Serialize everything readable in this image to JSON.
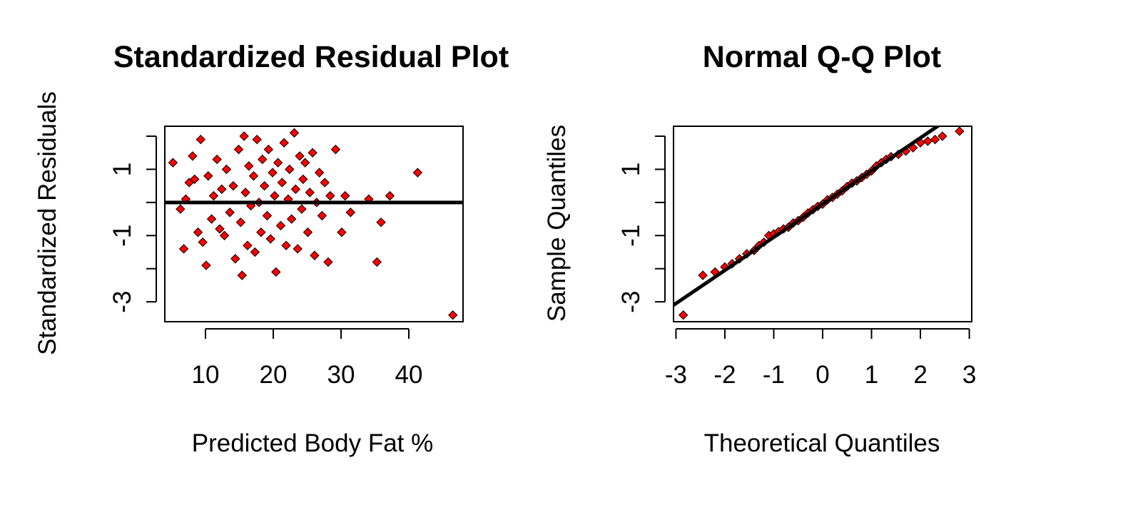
{
  "chart_data": [
    {
      "type": "scatter",
      "title": "Standardized Residual Plot",
      "xlabel": "Predicted Body Fat %",
      "ylabel": "Standardized Residuals",
      "xlim": [
        4,
        48
      ],
      "ylim": [
        -3.6,
        2.3
      ],
      "xticks": [
        "10",
        "20",
        "30",
        "40"
      ],
      "yticks": [
        "-3",
        "-1",
        "1"
      ],
      "reference_line": {
        "type": "horizontal",
        "y": 0
      },
      "marker": {
        "shape": "diamond",
        "fill": "#ff0000",
        "stroke": "#000000"
      },
      "grid": false,
      "points": [
        [
          5.2,
          1.2
        ],
        [
          6.3,
          -0.2
        ],
        [
          6.8,
          -1.4
        ],
        [
          7.1,
          0.1
        ],
        [
          7.6,
          0.6
        ],
        [
          8.1,
          1.4
        ],
        [
          8.4,
          0.7
        ],
        [
          8.9,
          -0.9
        ],
        [
          9.3,
          1.9
        ],
        [
          9.6,
          -1.2
        ],
        [
          10.1,
          -1.9
        ],
        [
          10.4,
          0.8
        ],
        [
          10.9,
          -0.5
        ],
        [
          11.2,
          0.2
        ],
        [
          11.7,
          1.3
        ],
        [
          12.1,
          -0.8
        ],
        [
          12.4,
          0.4
        ],
        [
          12.8,
          -1.0
        ],
        [
          13.1,
          1.0
        ],
        [
          13.6,
          -0.3
        ],
        [
          14.1,
          0.5
        ],
        [
          14.4,
          -1.7
        ],
        [
          14.9,
          1.6
        ],
        [
          15.2,
          -0.6
        ],
        [
          15.4,
          -2.2
        ],
        [
          15.7,
          2.0
        ],
        [
          15.9,
          0.3
        ],
        [
          16.2,
          -1.3
        ],
        [
          16.4,
          1.1
        ],
        [
          16.7,
          -0.1
        ],
        [
          17.1,
          0.8
        ],
        [
          17.3,
          -1.5
        ],
        [
          17.6,
          1.9
        ],
        [
          17.9,
          0.0
        ],
        [
          18.2,
          -0.9
        ],
        [
          18.4,
          1.3
        ],
        [
          18.7,
          0.5
        ],
        [
          19.1,
          -0.4
        ],
        [
          19.3,
          1.6
        ],
        [
          19.6,
          -1.1
        ],
        [
          19.9,
          0.9
        ],
        [
          20.2,
          0.2
        ],
        [
          20.4,
          -2.1
        ],
        [
          20.7,
          1.2
        ],
        [
          21.1,
          -0.7
        ],
        [
          21.3,
          0.6
        ],
        [
          21.6,
          1.8
        ],
        [
          21.9,
          -1.3
        ],
        [
          22.2,
          0.1
        ],
        [
          22.4,
          1.0
        ],
        [
          22.7,
          -0.5
        ],
        [
          23.1,
          2.1
        ],
        [
          23.3,
          0.4
        ],
        [
          23.6,
          -1.4
        ],
        [
          23.9,
          1.4
        ],
        [
          24.2,
          -0.2
        ],
        [
          24.4,
          0.7
        ],
        [
          24.7,
          1.2
        ],
        [
          25.1,
          -0.9
        ],
        [
          25.4,
          0.3
        ],
        [
          25.8,
          1.5
        ],
        [
          26.1,
          -1.6
        ],
        [
          26.4,
          0.0
        ],
        [
          26.8,
          0.9
        ],
        [
          27.2,
          -0.4
        ],
        [
          27.6,
          0.6
        ],
        [
          28.1,
          -1.8
        ],
        [
          28.4,
          0.2
        ],
        [
          29.2,
          1.6
        ],
        [
          30.1,
          -0.9
        ],
        [
          30.6,
          0.2
        ],
        [
          31.4,
          -0.3
        ],
        [
          34.1,
          0.1
        ],
        [
          35.3,
          -1.8
        ],
        [
          35.9,
          -0.6
        ],
        [
          37.2,
          0.2
        ],
        [
          41.3,
          0.9
        ],
        [
          46.5,
          -3.4
        ]
      ]
    },
    {
      "type": "scatter",
      "title": "Normal Q-Q Plot",
      "xlabel": "Theoretical Quantiles",
      "ylabel": "Sample Quantiles",
      "xlim": [
        -3.05,
        3.05
      ],
      "ylim": [
        -3.6,
        2.3
      ],
      "xticks": [
        "-3",
        "-2",
        "-1",
        "0",
        "1",
        "2",
        "3"
      ],
      "yticks": [
        "-3",
        "-1",
        "1"
      ],
      "reference_line": {
        "type": "qq",
        "slope": 1.0,
        "intercept": -0.05
      },
      "marker": {
        "shape": "diamond",
        "fill": "#ff0000",
        "stroke": "#000000"
      },
      "grid": false,
      "points": [
        [
          -2.85,
          -3.4
        ],
        [
          -2.45,
          -2.2
        ],
        [
          -2.2,
          -2.1
        ],
        [
          -2.0,
          -1.95
        ],
        [
          -1.85,
          -1.85
        ],
        [
          -1.7,
          -1.7
        ],
        [
          -1.55,
          -1.55
        ],
        [
          -1.4,
          -1.45
        ],
        [
          -1.3,
          -1.3
        ],
        [
          -1.2,
          -1.2
        ],
        [
          -1.1,
          -1.0
        ],
        [
          -1.0,
          -0.95
        ],
        [
          -0.9,
          -0.88
        ],
        [
          -0.8,
          -0.8
        ],
        [
          -0.7,
          -0.75
        ],
        [
          -0.6,
          -0.62
        ],
        [
          -0.5,
          -0.55
        ],
        [
          -0.4,
          -0.45
        ],
        [
          -0.3,
          -0.32
        ],
        [
          -0.2,
          -0.22
        ],
        [
          -0.1,
          -0.12
        ],
        [
          0.0,
          -0.05
        ],
        [
          0.1,
          0.08
        ],
        [
          0.2,
          0.15
        ],
        [
          0.3,
          0.25
        ],
        [
          0.4,
          0.35
        ],
        [
          0.5,
          0.48
        ],
        [
          0.6,
          0.58
        ],
        [
          0.7,
          0.65
        ],
        [
          0.8,
          0.75
        ],
        [
          0.9,
          0.85
        ],
        [
          1.0,
          0.95
        ],
        [
          1.1,
          1.1
        ],
        [
          1.2,
          1.2
        ],
        [
          1.3,
          1.3
        ],
        [
          1.4,
          1.38
        ],
        [
          1.55,
          1.45
        ],
        [
          1.7,
          1.55
        ],
        [
          1.85,
          1.65
        ],
        [
          2.0,
          1.8
        ],
        [
          2.15,
          1.85
        ],
        [
          2.3,
          1.9
        ],
        [
          2.45,
          2.0
        ],
        [
          2.8,
          2.15
        ]
      ]
    }
  ]
}
